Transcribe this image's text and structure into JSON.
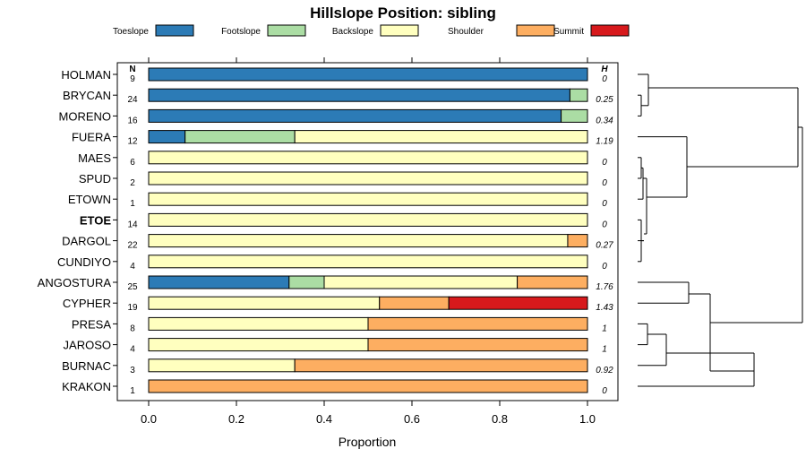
{
  "chart_data": {
    "type": "bar",
    "orientation": "horizontal",
    "stacked": true,
    "title": "Hillslope Position: sibling",
    "xlabel": "Proportion",
    "xlim": [
      0,
      1
    ],
    "xticks": [
      "0.0",
      "0.2",
      "0.4",
      "0.6",
      "0.8",
      "1.0"
    ],
    "n_header": "N",
    "h_header": "H",
    "legend_position": "top",
    "legend": [
      {
        "name": "Toeslope",
        "color": "#2c7bb6"
      },
      {
        "name": "Footslope",
        "color": "#abdda4"
      },
      {
        "name": "Backslope",
        "color": "#ffffbf"
      },
      {
        "name": "Shoulder",
        "color": "#fdae61"
      },
      {
        "name": "Summit",
        "color": "#d7191c"
      }
    ],
    "rows": [
      {
        "label": "HOLMAN",
        "n": "9",
        "h": "0",
        "values": [
          1.0,
          0,
          0,
          0,
          0
        ]
      },
      {
        "label": "BRYCAN",
        "n": "24",
        "h": "0.25",
        "values": [
          0.96,
          0.04,
          0,
          0,
          0
        ]
      },
      {
        "label": "MORENO",
        "n": "16",
        "h": "0.34",
        "values": [
          0.94,
          0.06,
          0,
          0,
          0
        ]
      },
      {
        "label": "FUERA",
        "n": "12",
        "h": "1.19",
        "values": [
          0.083,
          0.25,
          0.667,
          0,
          0
        ]
      },
      {
        "label": "MAES",
        "n": "6",
        "h": "0",
        "values": [
          0,
          0,
          1.0,
          0,
          0
        ]
      },
      {
        "label": "SPUD",
        "n": "2",
        "h": "0",
        "values": [
          0,
          0,
          1.0,
          0,
          0
        ]
      },
      {
        "label": "ETOWN",
        "n": "1",
        "h": "0",
        "values": [
          0,
          0,
          1.0,
          0,
          0
        ]
      },
      {
        "label": "ETOE",
        "n": "14",
        "h": "0",
        "values": [
          0,
          0,
          1.0,
          0,
          0
        ],
        "bold": true
      },
      {
        "label": "DARGOL",
        "n": "22",
        "h": "0.27",
        "values": [
          0,
          0,
          0.955,
          0.045,
          0
        ]
      },
      {
        "label": "CUNDIYO",
        "n": "4",
        "h": "0",
        "values": [
          0,
          0,
          1.0,
          0,
          0
        ]
      },
      {
        "label": "ANGOSTURA",
        "n": "25",
        "h": "1.76",
        "values": [
          0.32,
          0.08,
          0.44,
          0.16,
          0
        ]
      },
      {
        "label": "CYPHER",
        "n": "19",
        "h": "1.43",
        "values": [
          0,
          0,
          0.526,
          0.158,
          0.316
        ]
      },
      {
        "label": "PRESA",
        "n": "8",
        "h": "1",
        "values": [
          0,
          0,
          0.5,
          0.5,
          0
        ]
      },
      {
        "label": "JAROSO",
        "n": "4",
        "h": "1",
        "values": [
          0,
          0,
          0.5,
          0.5,
          0
        ]
      },
      {
        "label": "BURNAC",
        "n": "3",
        "h": "0.92",
        "values": [
          0,
          0,
          0.333,
          0.667,
          0
        ]
      },
      {
        "label": "KRAKON",
        "n": "1",
        "h": "0",
        "values": [
          0,
          0,
          0,
          1.0,
          0
        ]
      }
    ]
  }
}
